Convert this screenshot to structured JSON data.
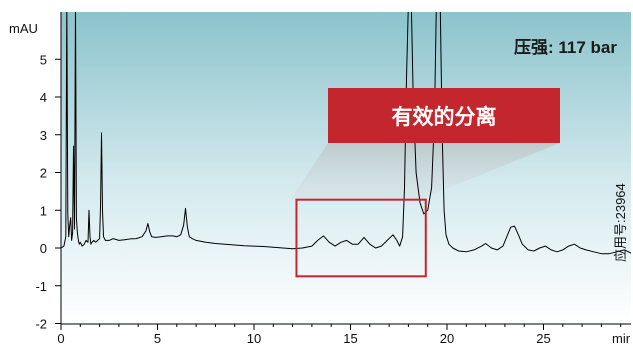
{
  "chart_data": {
    "type": "line",
    "ylabel": "mAU",
    "xlabel": "mir",
    "xlim": [
      0,
      30
    ],
    "ylim": [
      -2,
      6
    ],
    "xticks": [
      0,
      5,
      10,
      15,
      20,
      25
    ],
    "yticks": [
      -2,
      -1,
      0,
      1,
      2,
      3,
      4,
      5
    ],
    "pressure_label": "压强: 117 bar",
    "callout_label": "有效的分离",
    "app_note": "应用号:23964",
    "colors": {
      "trace": "#000000",
      "callout_fill": "#c4262e",
      "callout_box": "#c4262e",
      "background_top": "#8cc3cc",
      "background_bottom": "#ffffff"
    },
    "highlight_region": {
      "x": [
        12.2,
        18.9
      ],
      "y": [
        -0.75,
        1.28
      ]
    },
    "series": [
      {
        "x": [
          0,
          0.15,
          0.25,
          0.3,
          0.35,
          0.4,
          0.45,
          0.5,
          0.55,
          0.6,
          0.65,
          0.7,
          0.75,
          0.8,
          0.85,
          0.9,
          0.95,
          1.0,
          1.1,
          1.2,
          1.3,
          1.4,
          1.45,
          1.5,
          1.55,
          1.6,
          1.7,
          1.8,
          1.9,
          2.0,
          2.05,
          2.1,
          2.15,
          2.2,
          2.3,
          2.5,
          2.7,
          3.0,
          3.3,
          3.6,
          3.9,
          4.2,
          4.4,
          4.5,
          4.6,
          4.7,
          4.9,
          5.2,
          5.5,
          5.8,
          6.0,
          6.2,
          6.35,
          6.45,
          6.55,
          6.65,
          6.8,
          7.0,
          7.5,
          8.0,
          8.5,
          9.0,
          9.5,
          10.0,
          10.5,
          11.0,
          11.5,
          12.0,
          12.5,
          13.0,
          13.3,
          13.6,
          13.9,
          14.2,
          14.5,
          14.8,
          15.1,
          15.4,
          15.7,
          16.0,
          16.3,
          16.6,
          16.9,
          17.2,
          17.4,
          17.55,
          17.7,
          17.8,
          17.9,
          18.0,
          18.05,
          18.1,
          18.15,
          18.25,
          18.4,
          18.6,
          18.8,
          19.0,
          19.2,
          19.35,
          19.45,
          19.55,
          19.65,
          19.75,
          19.85,
          19.95,
          20.1,
          20.3,
          20.6,
          21.0,
          21.4,
          21.8,
          22.0,
          22.3,
          22.6,
          22.9,
          23.1,
          23.3,
          23.5,
          23.7,
          23.9,
          24.2,
          24.5,
          24.8,
          25.1,
          25.4,
          25.7,
          26.0,
          26.3,
          26.6,
          26.9,
          27.2,
          27.6,
          28.0,
          28.4,
          28.8,
          29.2,
          29.6,
          30.0
        ],
        "y": [
          0.0,
          0.05,
          0.3,
          6.5,
          0.9,
          0.3,
          0.6,
          0.8,
          0.2,
          0.4,
          2.7,
          0.5,
          6.5,
          0.8,
          0.4,
          0.2,
          0.1,
          0.15,
          0.05,
          0.1,
          0.2,
          0.15,
          1.0,
          0.3,
          0.1,
          0.15,
          0.2,
          0.15,
          0.2,
          0.25,
          1.2,
          3.05,
          1.0,
          0.3,
          0.2,
          0.2,
          0.25,
          0.2,
          0.22,
          0.24,
          0.25,
          0.3,
          0.45,
          0.65,
          0.42,
          0.3,
          0.28,
          0.3,
          0.32,
          0.32,
          0.3,
          0.35,
          0.6,
          1.05,
          0.55,
          0.3,
          0.25,
          0.2,
          0.15,
          0.12,
          0.1,
          0.08,
          0.06,
          0.05,
          0.04,
          0.02,
          0.0,
          -0.02,
          0.0,
          0.05,
          0.2,
          0.32,
          0.15,
          0.05,
          0.15,
          0.2,
          0.1,
          0.1,
          0.28,
          0.1,
          0.0,
          0.05,
          0.2,
          0.35,
          0.2,
          0.05,
          0.3,
          1.6,
          4.5,
          6.5,
          6.5,
          6.5,
          6.5,
          4.0,
          2.0,
          1.2,
          0.9,
          1.0,
          1.6,
          3.5,
          6.5,
          6.5,
          6.5,
          3.0,
          1.0,
          0.35,
          0.1,
          0.0,
          -0.08,
          -0.1,
          -0.05,
          0.05,
          0.12,
          0.0,
          -0.05,
          0.05,
          0.3,
          0.55,
          0.58,
          0.35,
          0.1,
          -0.05,
          -0.08,
          0.0,
          0.05,
          -0.05,
          -0.1,
          -0.05,
          0.05,
          0.1,
          0.0,
          -0.05,
          -0.1,
          -0.15,
          -0.15,
          -0.1,
          -0.05,
          -0.15,
          -0.2
        ]
      }
    ]
  }
}
